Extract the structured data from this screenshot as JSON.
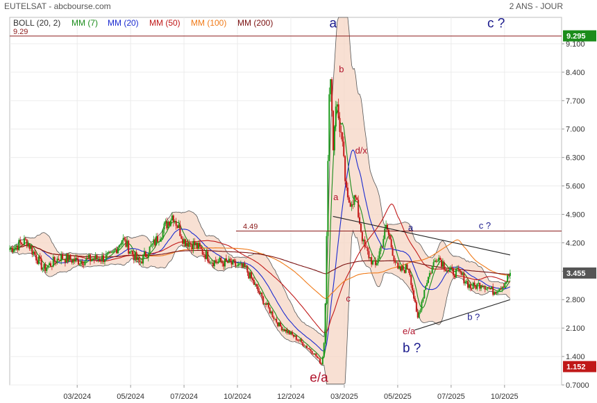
{
  "header": {
    "title": "EUTELSAT - abcbourse.com",
    "period": "2 ANS - JOUR"
  },
  "legend": [
    {
      "label": "BOLL (20, 2)",
      "color": "#333333"
    },
    {
      "label": "MM (7)",
      "color": "#1a8c1a"
    },
    {
      "label": "MM (20)",
      "color": "#1a2ad0"
    },
    {
      "label": "MM (50)",
      "color": "#c01818"
    },
    {
      "label": "MM (100)",
      "color": "#f07a18"
    },
    {
      "label": "MM (200)",
      "color": "#7a1010"
    }
  ],
  "colors": {
    "up_candle": "#1a9a1a",
    "down_candle": "#c41818",
    "bollinger_fill": "#f5d6c4",
    "resistance_line": "#8b1a1a",
    "current_price_badge": "#555555",
    "top_badge": "#1a8c1a",
    "low_badge": "#c01818",
    "wave_label_blue": "#1a1a8c",
    "wave_label_red": "#b0122a"
  },
  "chart_data": {
    "type": "candlestick",
    "ylim": [
      0.7,
      9.75
    ],
    "y_ticks": [
      "0.7000",
      "1.400",
      "2.100",
      "2.800",
      "3.500",
      "4.200",
      "4.900",
      "5.600",
      "6.300",
      "7.000",
      "7.700",
      "8.400",
      "9.100"
    ],
    "y_tick_values": [
      0.7,
      1.4,
      2.1,
      2.8,
      3.5,
      4.2,
      4.9,
      5.6,
      6.3,
      7.0,
      7.7,
      8.4,
      9.1
    ],
    "x_ticks": [
      "03/2024",
      "05/2024",
      "07/2024",
      "10/2024",
      "12/2024",
      "03/2025",
      "05/2025",
      "07/2025",
      "10/2025"
    ],
    "x_tick_positions": [
      0.12,
      0.215,
      0.31,
      0.405,
      0.5,
      0.595,
      0.69,
      0.785,
      0.88
    ],
    "price_anchors": [
      [
        0.0,
        4.05
      ],
      [
        0.03,
        4.25
      ],
      [
        0.06,
        3.55
      ],
      [
        0.09,
        3.85
      ],
      [
        0.12,
        3.75
      ],
      [
        0.15,
        3.8
      ],
      [
        0.18,
        3.85
      ],
      [
        0.2,
        4.3
      ],
      [
        0.23,
        3.7
      ],
      [
        0.26,
        4.25
      ],
      [
        0.29,
        4.9
      ],
      [
        0.31,
        4.25
      ],
      [
        0.33,
        4.15
      ],
      [
        0.36,
        3.75
      ],
      [
        0.39,
        3.7
      ],
      [
        0.42,
        3.55
      ],
      [
        0.45,
        2.8
      ],
      [
        0.48,
        2.15
      ],
      [
        0.51,
        1.85
      ],
      [
        0.54,
        1.5
      ],
      [
        0.555,
        1.2
      ],
      [
        0.56,
        1.9
      ],
      [
        0.565,
        5.5
      ],
      [
        0.57,
        8.8
      ],
      [
        0.575,
        6.5
      ],
      [
        0.58,
        7.7
      ],
      [
        0.59,
        6.8
      ],
      [
        0.6,
        5.2
      ],
      [
        0.615,
        5.3
      ],
      [
        0.63,
        4.1
      ],
      [
        0.65,
        3.6
      ],
      [
        0.67,
        4.6
      ],
      [
        0.69,
        3.5
      ],
      [
        0.71,
        3.6
      ],
      [
        0.725,
        2.3
      ],
      [
        0.74,
        3.2
      ],
      [
        0.76,
        3.9
      ],
      [
        0.78,
        3.5
      ],
      [
        0.8,
        3.45
      ],
      [
        0.82,
        3.1
      ],
      [
        0.84,
        3.2
      ],
      [
        0.86,
        3.0
      ],
      [
        0.88,
        3.2
      ],
      [
        0.89,
        3.455
      ]
    ],
    "last_close": 3.455,
    "period_high": 9.295,
    "period_low": 1.152,
    "resistance_levels": [
      {
        "value": 9.29,
        "label": "9.29"
      },
      {
        "value": 4.49,
        "label": "4.49"
      }
    ],
    "badges": [
      {
        "value": 9.295,
        "label": "9.295"
      },
      {
        "value": 3.455,
        "label": "3.455"
      },
      {
        "value": 1.152,
        "label": "1.152"
      }
    ],
    "triangle": {
      "upper": [
        [
          0.575,
          4.85
        ],
        [
          0.89,
          3.9
        ]
      ],
      "lower": [
        [
          0.72,
          2.05
        ],
        [
          0.89,
          2.8
        ]
      ]
    },
    "annotations": [
      {
        "text": "a",
        "x": 0.575,
        "y": 9.5,
        "color": "blue",
        "size": "large"
      },
      {
        "text": "b",
        "x": 0.59,
        "y": 8.4,
        "color": "red",
        "size": "small"
      },
      {
        "text": "d/x",
        "x": 0.625,
        "y": 6.4,
        "color": "red",
        "size": "small"
      },
      {
        "text": "a",
        "x": 0.58,
        "y": 5.25,
        "color": "red",
        "size": "small"
      },
      {
        "text": "c",
        "x": 0.602,
        "y": 2.75,
        "color": "red",
        "size": "small"
      },
      {
        "text": "e/a",
        "x": 0.55,
        "y": 0.78,
        "color": "red",
        "size": "large"
      },
      {
        "text": "a",
        "x": 0.713,
        "y": 4.5,
        "color": "blue",
        "size": "small"
      },
      {
        "text": "c ?",
        "x": 0.845,
        "y": 4.55,
        "color": "blue",
        "size": "small"
      },
      {
        "text": "e/a",
        "x": 0.71,
        "y": 1.95,
        "color": "red",
        "size": "small"
      },
      {
        "text": "b ?",
        "x": 0.715,
        "y": 1.5,
        "color": "blue",
        "size": "large"
      },
      {
        "text": "b ?",
        "x": 0.825,
        "y": 2.3,
        "color": "blue",
        "size": "small"
      },
      {
        "text": "c ?",
        "x": 0.865,
        "y": 9.5,
        "color": "blue",
        "size": "large"
      }
    ]
  }
}
